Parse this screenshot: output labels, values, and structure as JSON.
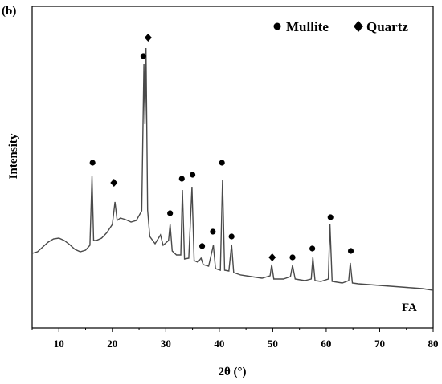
{
  "panel_label": "(b)",
  "chart_data": {
    "type": "line",
    "title": "",
    "xlabel": "2θ (°)",
    "ylabel": "Intensity",
    "xlim": [
      5,
      80
    ],
    "x_ticks": [
      10,
      20,
      30,
      40,
      50,
      60,
      70,
      80
    ],
    "y_ticks_shown": false,
    "grid": false,
    "series": [
      {
        "name": "FA",
        "color": "#4a4a4a",
        "points": [
          [
            5,
            316
          ],
          [
            6,
            314
          ],
          [
            7,
            308
          ],
          [
            8,
            302
          ],
          [
            9,
            298
          ],
          [
            10,
            297
          ],
          [
            11,
            300
          ],
          [
            12,
            305
          ],
          [
            13,
            311
          ],
          [
            14,
            314
          ],
          [
            15,
            312
          ],
          [
            15.8,
            306
          ],
          [
            16.2,
            220
          ],
          [
            16.5,
            300
          ],
          [
            17,
            300
          ],
          [
            18,
            297
          ],
          [
            19,
            290
          ],
          [
            20,
            280
          ],
          [
            20.5,
            252
          ],
          [
            20.9,
            275
          ],
          [
            21.5,
            272
          ],
          [
            22.5,
            274
          ],
          [
            23.5,
            277
          ],
          [
            24.5,
            275
          ],
          [
            25.5,
            263
          ],
          [
            25.9,
            80
          ],
          [
            26.1,
            155
          ],
          [
            26.3,
            60
          ],
          [
            26.6,
            262
          ],
          [
            27,
            295
          ],
          [
            28,
            304
          ],
          [
            29,
            293
          ],
          [
            29.5,
            306
          ],
          [
            30.5,
            300
          ],
          [
            30.8,
            280
          ],
          [
            31.2,
            313
          ],
          [
            32,
            318
          ],
          [
            32.8,
            318
          ],
          [
            33.1,
            237
          ],
          [
            33.5,
            323
          ],
          [
            34.3,
            322
          ],
          [
            34.9,
            233
          ],
          [
            35.3,
            325
          ],
          [
            36,
            327
          ],
          [
            36.6,
            322
          ],
          [
            37,
            330
          ],
          [
            38,
            332
          ],
          [
            38.9,
            306
          ],
          [
            39.3,
            335
          ],
          [
            40.2,
            337
          ],
          [
            40.6,
            225
          ],
          [
            41,
            337
          ],
          [
            41.8,
            338
          ],
          [
            42.3,
            305
          ],
          [
            42.7,
            340
          ],
          [
            44,
            343
          ],
          [
            46,
            345
          ],
          [
            48,
            347
          ],
          [
            49.5,
            344
          ],
          [
            49.8,
            330
          ],
          [
            50.2,
            348
          ],
          [
            52,
            348
          ],
          [
            53.3,
            345
          ],
          [
            53.7,
            331
          ],
          [
            54.2,
            348
          ],
          [
            56,
            350
          ],
          [
            57.2,
            348
          ],
          [
            57.5,
            321
          ],
          [
            57.9,
            350
          ],
          [
            59,
            351
          ],
          [
            60.4,
            348
          ],
          [
            60.7,
            280
          ],
          [
            61.1,
            351
          ],
          [
            63,
            353
          ],
          [
            64.2,
            350
          ],
          [
            64.5,
            328
          ],
          [
            64.9,
            353
          ],
          [
            66,
            354
          ],
          [
            68,
            355
          ],
          [
            70,
            356
          ],
          [
            72,
            357
          ],
          [
            74,
            358
          ],
          [
            76,
            359
          ],
          [
            78,
            360
          ],
          [
            80,
            362
          ]
        ]
      }
    ],
    "legend": [
      {
        "marker": "circle",
        "label": "Mullite"
      },
      {
        "marker": "diamond",
        "label": "Quartz"
      }
    ],
    "annotations": [
      {
        "marker": "circle",
        "x": 16.3,
        "y": 203
      },
      {
        "marker": "diamond",
        "x": 20.3,
        "y": 228
      },
      {
        "marker": "circle",
        "x": 25.8,
        "y": 70
      },
      {
        "marker": "diamond",
        "x": 26.7,
        "y": 47
      },
      {
        "marker": "circle",
        "x": 30.8,
        "y": 266
      },
      {
        "marker": "circle",
        "x": 33.0,
        "y": 223
      },
      {
        "marker": "circle",
        "x": 35.0,
        "y": 218
      },
      {
        "marker": "circle",
        "x": 36.8,
        "y": 307
      },
      {
        "marker": "circle",
        "x": 38.8,
        "y": 289
      },
      {
        "marker": "circle",
        "x": 40.5,
        "y": 203
      },
      {
        "marker": "circle",
        "x": 42.3,
        "y": 295
      },
      {
        "marker": "diamond",
        "x": 49.9,
        "y": 321
      },
      {
        "marker": "circle",
        "x": 53.7,
        "y": 321
      },
      {
        "marker": "circle",
        "x": 57.4,
        "y": 310
      },
      {
        "marker": "circle",
        "x": 60.8,
        "y": 271
      },
      {
        "marker": "circle",
        "x": 64.6,
        "y": 313
      }
    ]
  }
}
